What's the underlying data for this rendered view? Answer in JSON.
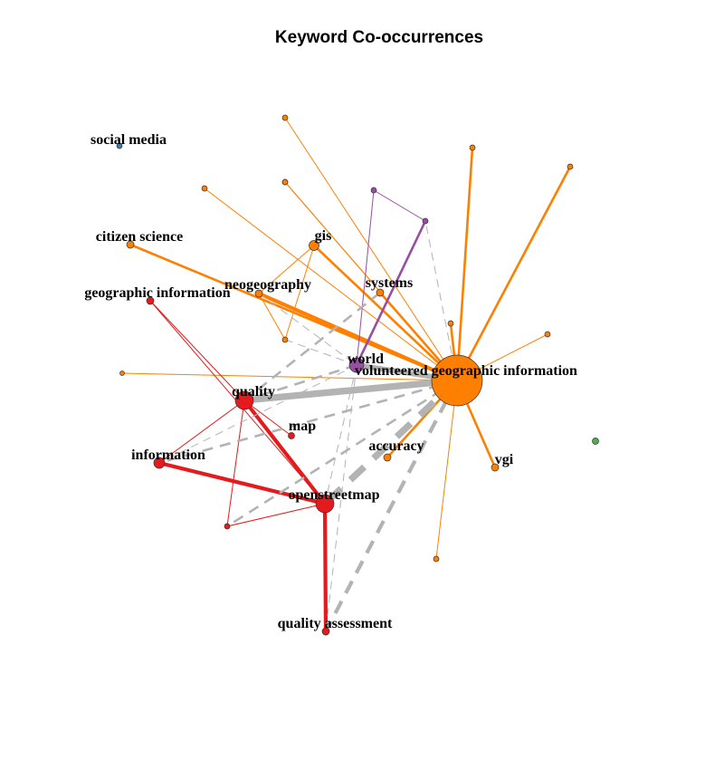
{
  "title": "Keyword Co-occurrences",
  "colors": {
    "orange": "#FF7F00",
    "red": "#E41A1C",
    "purple": "#984EA3",
    "blue": "#377EB8",
    "green": "#4DAF4A",
    "gray": "#B3B3B3"
  },
  "nodes": [
    {
      "id": "vgi",
      "label": "volunteered geographic information",
      "color": "orange",
      "degree": 10
    },
    {
      "id": "osm",
      "label": "openstreetmap",
      "color": "red",
      "degree": 4
    },
    {
      "id": "quality",
      "label": "quality",
      "color": "red",
      "degree": 4
    },
    {
      "id": "information",
      "label": "information",
      "color": "red",
      "degree": 2
    },
    {
      "id": "geoinfo",
      "label": "geographic information",
      "color": "red",
      "degree": 1
    },
    {
      "id": "qa",
      "label": "quality assessment",
      "color": "red",
      "degree": 1
    },
    {
      "id": "map",
      "label": "map",
      "color": "red",
      "degree": 1
    },
    {
      "id": "gis",
      "label": "gis",
      "color": "orange",
      "degree": 2
    },
    {
      "id": "neogeo",
      "label": "neogeography",
      "color": "orange",
      "degree": 1
    },
    {
      "id": "systems",
      "label": "systems",
      "color": "orange",
      "degree": 1
    },
    {
      "id": "accuracy",
      "label": "accuracy",
      "color": "orange",
      "degree": 1
    },
    {
      "id": "vgi2",
      "label": "vgi",
      "color": "orange",
      "degree": 1
    },
    {
      "id": "citizen",
      "label": "citizen science",
      "color": "orange",
      "degree": 1
    },
    {
      "id": "world",
      "label": "world",
      "color": "purple",
      "degree": 2
    },
    {
      "id": "social",
      "label": "social media",
      "color": "blue",
      "degree": 0
    },
    {
      "id": "u_o1",
      "label": "",
      "color": "orange",
      "degree": 0
    },
    {
      "id": "u_o2",
      "label": "",
      "color": "orange",
      "degree": 0
    },
    {
      "id": "u_o3",
      "label": "",
      "color": "orange",
      "degree": 0
    },
    {
      "id": "u_o4",
      "label": "",
      "color": "orange",
      "degree": 0
    },
    {
      "id": "u_o5",
      "label": "",
      "color": "orange",
      "degree": 0
    },
    {
      "id": "u_o6",
      "label": "",
      "color": "orange",
      "degree": 0
    },
    {
      "id": "u_o7",
      "label": "",
      "color": "orange",
      "degree": 0
    },
    {
      "id": "u_o8",
      "label": "",
      "color": "orange",
      "degree": 0
    },
    {
      "id": "u_o9",
      "label": "",
      "color": "orange",
      "degree": 0
    },
    {
      "id": "u_o10",
      "label": "",
      "color": "orange",
      "degree": 0
    },
    {
      "id": "u_o11",
      "label": "",
      "color": "orange",
      "degree": 0
    },
    {
      "id": "u_r1",
      "label": "",
      "color": "red",
      "degree": 0
    },
    {
      "id": "u_p1",
      "label": "",
      "color": "purple",
      "degree": 0
    },
    {
      "id": "u_p2",
      "label": "",
      "color": "purple",
      "degree": 0
    },
    {
      "id": "u_g1",
      "label": "",
      "color": "green",
      "degree": 0
    }
  ],
  "edges": [
    {
      "from": "vgi",
      "to": "u_o1",
      "color": "orange",
      "weight": 1,
      "dashed": false
    },
    {
      "from": "vgi",
      "to": "u_o2",
      "color": "orange",
      "weight": 2,
      "dashed": false
    },
    {
      "from": "vgi",
      "to": "u_o3",
      "color": "orange",
      "weight": 2,
      "dashed": false
    },
    {
      "from": "vgi",
      "to": "u_o4",
      "color": "orange",
      "weight": 1,
      "dashed": false
    },
    {
      "from": "vgi",
      "to": "u_o5",
      "color": "orange",
      "weight": 1,
      "dashed": false
    },
    {
      "from": "vgi",
      "to": "u_o6",
      "color": "orange",
      "weight": 2,
      "dashed": false
    },
    {
      "from": "vgi",
      "to": "u_o7",
      "color": "orange",
      "weight": 1,
      "dashed": false
    },
    {
      "from": "vgi",
      "to": "u_o8",
      "color": "orange",
      "weight": 1,
      "dashed": false
    },
    {
      "from": "vgi",
      "to": "u_o9",
      "color": "orange",
      "weight": 1,
      "dashed": false
    },
    {
      "from": "vgi",
      "to": "u_o10",
      "color": "orange",
      "weight": 1,
      "dashed": false
    },
    {
      "from": "vgi",
      "to": "gis",
      "color": "orange",
      "weight": 2,
      "dashed": false
    },
    {
      "from": "vgi",
      "to": "neogeo",
      "color": "orange",
      "weight": 3,
      "dashed": false
    },
    {
      "from": "vgi",
      "to": "systems",
      "color": "orange",
      "weight": 2,
      "dashed": false
    },
    {
      "from": "vgi",
      "to": "citizen",
      "color": "orange",
      "weight": 2,
      "dashed": false
    },
    {
      "from": "vgi",
      "to": "accuracy",
      "color": "orange",
      "weight": 2,
      "dashed": false
    },
    {
      "from": "vgi",
      "to": "vgi2",
      "color": "orange",
      "weight": 2,
      "dashed": false
    },
    {
      "from": "gis",
      "to": "u_o11",
      "color": "orange",
      "weight": 1,
      "dashed": false
    },
    {
      "from": "gis",
      "to": "neogeo",
      "color": "orange",
      "weight": 1,
      "dashed": false
    },
    {
      "from": "neogeo",
      "to": "u_o11",
      "color": "orange",
      "weight": 1,
      "dashed": false
    },
    {
      "from": "u_p1",
      "to": "u_p2",
      "color": "purple",
      "weight": 1,
      "dashed": false
    },
    {
      "from": "u_p1",
      "to": "world",
      "color": "purple",
      "weight": 1,
      "dashed": false
    },
    {
      "from": "u_p2",
      "to": "world",
      "color": "purple",
      "weight": 2,
      "dashed": false
    },
    {
      "from": "quality",
      "to": "osm",
      "color": "red",
      "weight": 3,
      "dashed": false
    },
    {
      "from": "quality",
      "to": "geoinfo",
      "color": "red",
      "weight": 1,
      "dashed": false
    },
    {
      "from": "quality",
      "to": "information",
      "color": "red",
      "weight": 1,
      "dashed": false
    },
    {
      "from": "quality",
      "to": "map",
      "color": "red",
      "weight": 1,
      "dashed": false
    },
    {
      "from": "quality",
      "to": "u_r1",
      "color": "red",
      "weight": 1,
      "dashed": false
    },
    {
      "from": "osm",
      "to": "information",
      "color": "red",
      "weight": 3,
      "dashed": false
    },
    {
      "from": "osm",
      "to": "qa",
      "color": "red",
      "weight": 3,
      "dashed": false
    },
    {
      "from": "osm",
      "to": "u_r1",
      "color": "red",
      "weight": 1,
      "dashed": false
    },
    {
      "from": "osm",
      "to": "geoinfo",
      "color": "red",
      "weight": 1,
      "dashed": false
    },
    {
      "from": "vgi",
      "to": "quality",
      "color": "gray",
      "weight": 5,
      "dashed": false
    },
    {
      "from": "vgi",
      "to": "osm",
      "color": "gray",
      "weight": 5,
      "dashed": true
    },
    {
      "from": "vgi",
      "to": "qa",
      "color": "gray",
      "weight": 3,
      "dashed": true
    },
    {
      "from": "vgi",
      "to": "information",
      "color": "gray",
      "weight": 2,
      "dashed": true
    },
    {
      "from": "vgi",
      "to": "world",
      "color": "gray",
      "weight": 4,
      "dashed": false
    },
    {
      "from": "vgi",
      "to": "u_p2",
      "color": "gray",
      "weight": 1,
      "dashed": true
    },
    {
      "from": "vgi",
      "to": "u_r1",
      "color": "gray",
      "weight": 2,
      "dashed": true
    },
    {
      "from": "world",
      "to": "qa",
      "color": "gray",
      "weight": 1,
      "dashed": true
    },
    {
      "from": "world",
      "to": "osm",
      "color": "gray",
      "weight": 1,
      "dashed": true
    },
    {
      "from": "world",
      "to": "information",
      "color": "gray",
      "weight": 1,
      "dashed": true
    },
    {
      "from": "world",
      "to": "quality",
      "color": "gray",
      "weight": 2,
      "dashed": true
    },
    {
      "from": "world",
      "to": "u_o11",
      "color": "gray",
      "weight": 1,
      "dashed": true
    },
    {
      "from": "systems",
      "to": "quality",
      "color": "gray",
      "weight": 2,
      "dashed": true
    },
    {
      "from": "neogeo",
      "to": "world",
      "color": "gray",
      "weight": 1,
      "dashed": true
    }
  ]
}
